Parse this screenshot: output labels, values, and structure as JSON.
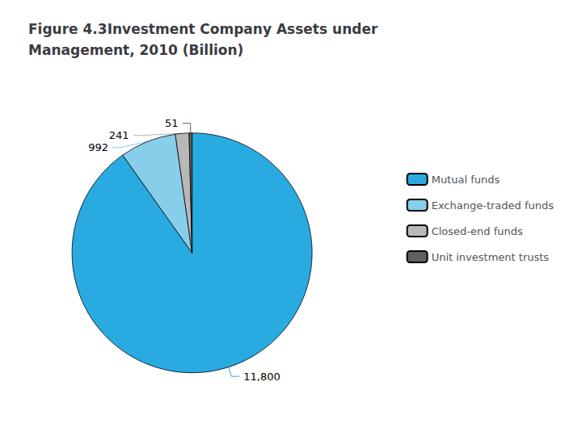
{
  "chart_data": {
    "type": "pie",
    "title": "Figure 4.3Investment Company Assets under\nManagement, 2010 (Billion)",
    "categories": [
      "Mutual funds",
      "Exchange-traded funds",
      "Closed-end funds",
      "Unit investment trusts"
    ],
    "values": [
      11800,
      992,
      241,
      51
    ],
    "value_labels": [
      "11,800",
      "992",
      "241",
      "51"
    ],
    "colors": [
      "#29abe2",
      "#87ceeb",
      "#b8b8b8",
      "#606060"
    ],
    "data_labels": true,
    "legend": "right"
  }
}
